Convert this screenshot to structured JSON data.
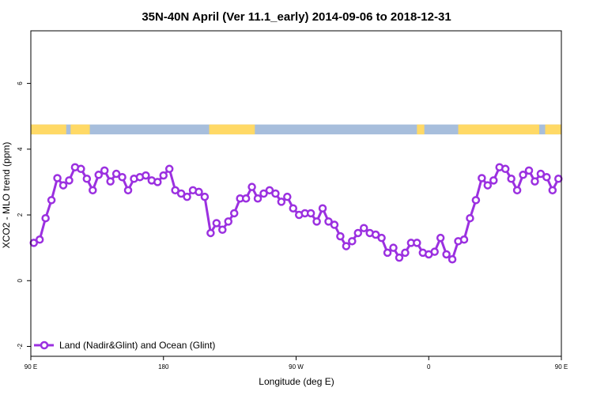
{
  "chart_data": {
    "type": "line",
    "title": "35N-40N April (Ver 11.1_early)   2014-09-06 to 2018-12-31",
    "xlabel": "Longitude (deg E)",
    "ylabel": "XCO2 - MLO trend (ppm)",
    "xlim": [
      90,
      450
    ],
    "ylim": [
      -2.3,
      7.6
    ],
    "x_ticks": [
      {
        "value": 90,
        "label": "90 E"
      },
      {
        "value": 180,
        "label": "180"
      },
      {
        "value": 270,
        "label": "90 W"
      },
      {
        "value": 360,
        "label": "0"
      },
      {
        "value": 450,
        "label": "90 E"
      }
    ],
    "y_ticks": [
      {
        "value": -2,
        "label": "-2"
      },
      {
        "value": 0,
        "label": "0"
      },
      {
        "value": 2,
        "label": "2"
      },
      {
        "value": 4,
        "label": "4"
      },
      {
        "value": 6,
        "label": "6"
      }
    ],
    "land_ocean_strip": {
      "y_range": [
        4.45,
        4.75
      ],
      "land_color": "#FFD966",
      "ocean_color": "#A7BEDC",
      "land_segments": [
        [
          90,
          114
        ],
        [
          117,
          130
        ],
        [
          211,
          242
        ],
        [
          352,
          357
        ],
        [
          380,
          435
        ],
        [
          439,
          450
        ]
      ]
    },
    "series": [
      {
        "name": "Land (Nadir&Glint) and Ocean (Glint)",
        "color": "#9B30E0",
        "x": [
          92,
          96,
          100,
          104,
          108,
          112,
          116,
          120,
          124,
          128,
          132,
          136,
          140,
          144,
          148,
          152,
          156,
          160,
          164,
          168,
          172,
          176,
          180,
          184,
          188,
          192,
          196,
          200,
          204,
          208,
          212,
          216,
          220,
          224,
          228,
          232,
          236,
          240,
          244,
          248,
          252,
          256,
          260,
          264,
          268,
          272,
          276,
          280,
          284,
          288,
          292,
          296,
          300,
          304,
          308,
          312,
          316,
          320,
          324,
          328,
          332,
          336,
          340,
          344,
          348,
          352,
          356,
          360,
          364,
          368,
          372,
          376,
          380,
          384,
          388,
          392,
          396,
          400,
          404,
          408,
          412,
          416,
          420,
          424,
          428,
          432,
          436,
          440,
          444,
          448
        ],
        "y": [
          1.15,
          1.25,
          1.9,
          2.45,
          3.12,
          2.9,
          3.05,
          3.45,
          3.4,
          3.1,
          2.75,
          3.22,
          3.35,
          3.02,
          3.25,
          3.15,
          2.75,
          3.1,
          3.15,
          3.2,
          3.05,
          3.0,
          3.2,
          3.4,
          2.75,
          2.65,
          2.55,
          2.75,
          2.7,
          2.55,
          1.45,
          1.75,
          1.55,
          1.8,
          2.05,
          2.5,
          2.5,
          2.85,
          2.5,
          2.65,
          2.75,
          2.65,
          2.4,
          2.55,
          2.2,
          2.0,
          2.05,
          2.05,
          1.8,
          2.2,
          1.8,
          1.7,
          1.35,
          1.05,
          1.2,
          1.45,
          1.6,
          1.45,
          1.4,
          1.3,
          0.85,
          1.0,
          0.7,
          0.85,
          1.15,
          1.15,
          0.85,
          0.8,
          0.88,
          1.3,
          0.8,
          0.65,
          1.2,
          1.25,
          1.9,
          2.45,
          3.12,
          2.9,
          3.05,
          3.45,
          3.4,
          3.1,
          2.75,
          3.22,
          3.35,
          3.02,
          3.25,
          3.15,
          2.75,
          3.1
        ]
      }
    ],
    "legend": {
      "position": "bottom-left"
    }
  }
}
